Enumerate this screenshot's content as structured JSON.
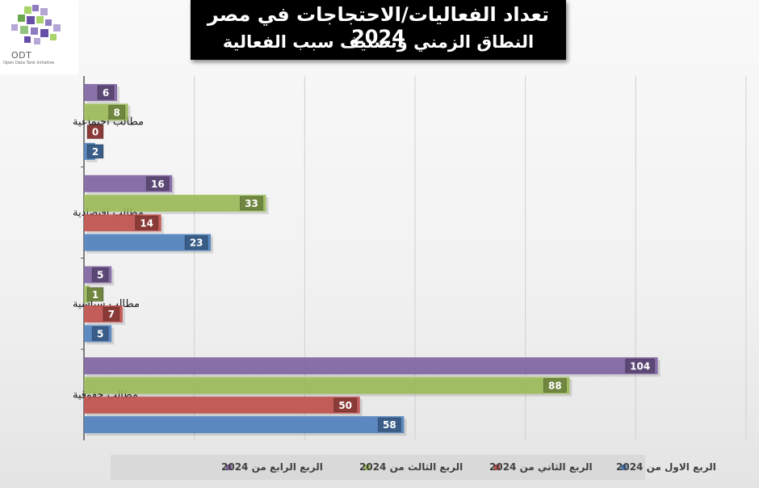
{
  "title": {
    "line1": "تعداد الفعاليات/الاحتجاجات في مصر 2024",
    "line2": "النطاق الزمني وتصنيف سبب الفعالية"
  },
  "logo": {
    "name": "ODT",
    "subtitle": "Open Data Tank Initiative"
  },
  "colors": {
    "q1": "#4f81bd",
    "q2": "#c0504d",
    "q3": "#9bbb59",
    "q4": "#8064a2"
  },
  "chart_data": {
    "type": "bar",
    "orientation": "horizontal",
    "categories": [
      "مطالب اجتماعية",
      "مطالب اقتصادية",
      "مطالب سياسية",
      "مطالب حقوقية"
    ],
    "series": [
      {
        "name": "الربع الرابع من 2024",
        "values": [
          6,
          16,
          5,
          104
        ],
        "color": "#8064a2"
      },
      {
        "name": "الربع الثالث من 2024",
        "values": [
          8,
          33,
          1,
          88
        ],
        "color": "#9bbb59"
      },
      {
        "name": "الربع الثاني من 2024",
        "values": [
          0,
          14,
          7,
          50
        ],
        "color": "#c0504d"
      },
      {
        "name": "الربع الاول من 2024",
        "values": [
          2,
          23,
          5,
          58
        ],
        "color": "#4f81bd"
      }
    ],
    "xlim": [
      0,
      120
    ],
    "grid": true,
    "legend_position": "bottom"
  }
}
